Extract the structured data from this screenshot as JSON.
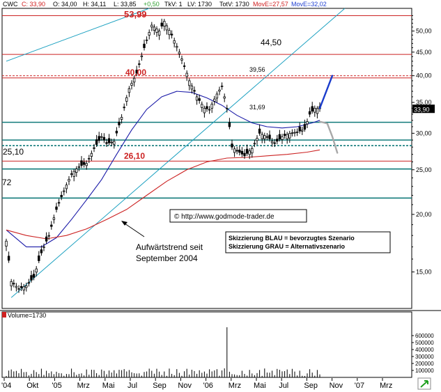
{
  "header": {
    "symbol": "CWC",
    "close_label": "C: 33,90",
    "open_label": "O: 34,00",
    "high_label": "H: 34,11",
    "low_label": "L: 33,85",
    "change_label": "+0,50",
    "tkv_label": "TkV: 1",
    "lv_label": "LV: 1730",
    "totv_label": "TotV: 1730",
    "ma1_label": "MovE=27,57",
    "ma2_label": "MovE=32,02"
  },
  "colors": {
    "price_line": "#000000",
    "ma_fast": "#1a1aa8",
    "ma_slow": "#cc2222",
    "trend_channel": "#1aa0c0",
    "support_teal": "#117a7a",
    "resistance_red": "#cc2222",
    "scenario_blue": "#1a3ccc",
    "scenario_gray": "#a8a8a8",
    "header_red": "#d02020",
    "header_blue": "#2040d0",
    "up_arrow": "#30a030"
  },
  "annotations": {
    "high_mark": "53,99",
    "resistance_44": "44,50",
    "level_40": "40,00",
    "level_39": "39,56",
    "level_31": "31,69",
    "level_26": "26,10",
    "level_25": "25,10",
    "level_72": "72",
    "current_price": "33,90",
    "trend_text_1": "Aufwärtstrend seit",
    "trend_text_2": "September 2004",
    "copyright": "© http://www.godmode-trader.de",
    "scenario_blue": "Skizzierung BLAU = bevorzugtes Szenario",
    "scenario_gray": "Skizzierung GRAU = Alternativszenario"
  },
  "chart_data": {
    "type": "candlestick",
    "y_scale": "log",
    "ylim": [
      12.5,
      56
    ],
    "price_ticks": [
      15,
      20,
      25,
      30,
      35,
      40,
      45,
      50
    ],
    "price_tick_labels": [
      "15,00",
      "20,00",
      "25,00",
      "30,00",
      "35,00",
      "40,00",
      "45,00",
      "50,00"
    ],
    "x_labels": [
      "'04",
      "Okt",
      "'05",
      "Mrz",
      "Mai",
      "Jul",
      "Sep",
      "Nov",
      "'06",
      "Mrz",
      "Mai",
      "Jul",
      "Sep",
      "Nov",
      "'07",
      "Mrz"
    ],
    "price_series": [
      [
        0,
        17.5
      ],
      [
        2,
        14.3
      ],
      [
        5,
        13.8
      ],
      [
        8,
        14.0
      ],
      [
        11,
        14.6
      ],
      [
        14,
        16.5
      ],
      [
        17,
        18.0
      ],
      [
        20,
        20.5
      ],
      [
        23,
        22.5
      ],
      [
        26,
        24.5
      ],
      [
        29,
        25.4
      ],
      [
        32,
        25.8
      ],
      [
        35,
        27.8
      ],
      [
        38,
        29.5
      ],
      [
        40,
        28.5
      ],
      [
        43,
        28.8
      ],
      [
        46,
        32.5
      ],
      [
        49,
        37.5
      ],
      [
        52,
        40.5
      ],
      [
        55,
        46.0
      ],
      [
        58,
        51.5
      ],
      [
        61,
        50.0
      ],
      [
        63,
        52.5
      ],
      [
        66,
        49.0
      ],
      [
        69,
        45.0
      ],
      [
        71,
        42.0
      ],
      [
        73,
        39.0
      ],
      [
        76,
        36.0
      ],
      [
        79,
        34.0
      ],
      [
        81,
        33.8
      ],
      [
        84,
        36.5
      ],
      [
        86,
        38.0
      ],
      [
        88,
        34.0
      ],
      [
        90,
        28.0
      ],
      [
        92,
        27.5
      ],
      [
        95,
        26.8
      ],
      [
        98,
        27.8
      ],
      [
        101,
        30.0
      ],
      [
        104,
        29.5
      ],
      [
        107,
        28.5
      ],
      [
        110,
        29.5
      ],
      [
        113,
        30.0
      ],
      [
        116,
        30.2
      ],
      [
        119,
        30.6
      ],
      [
        121,
        33.0
      ],
      [
        123,
        34.0
      ],
      [
        125,
        33.9
      ]
    ],
    "moving_averages": [
      {
        "name": "MovE=32,02",
        "color": "#1a1aa8",
        "points": [
          [
            0,
            18.5
          ],
          [
            8,
            17.0
          ],
          [
            14,
            17.0
          ],
          [
            20,
            17.8
          ],
          [
            26,
            19.5
          ],
          [
            32,
            21.5
          ],
          [
            38,
            23.8
          ],
          [
            44,
            27.0
          ],
          [
            50,
            30.5
          ],
          [
            56,
            33.8
          ],
          [
            62,
            36.0
          ],
          [
            68,
            37.0
          ],
          [
            74,
            36.8
          ],
          [
            80,
            35.8
          ],
          [
            86,
            34.5
          ],
          [
            92,
            32.8
          ],
          [
            98,
            31.6
          ],
          [
            104,
            31.0
          ],
          [
            110,
            30.8
          ],
          [
            116,
            31.0
          ],
          [
            122,
            31.6
          ],
          [
            125,
            32.0
          ]
        ]
      },
      {
        "name": "MovE=27,57",
        "color": "#cc2222",
        "points": [
          [
            0,
            18.5
          ],
          [
            8,
            18.0
          ],
          [
            16,
            17.7
          ],
          [
            24,
            18.0
          ],
          [
            32,
            18.6
          ],
          [
            40,
            19.5
          ],
          [
            48,
            20.5
          ],
          [
            56,
            22.0
          ],
          [
            64,
            23.6
          ],
          [
            72,
            25.0
          ],
          [
            80,
            26.0
          ],
          [
            88,
            26.5
          ],
          [
            96,
            26.6
          ],
          [
            104,
            26.8
          ],
          [
            112,
            27.0
          ],
          [
            120,
            27.3
          ],
          [
            125,
            27.6
          ]
        ]
      }
    ],
    "horizontal_levels": [
      {
        "value": 53.99,
        "color": "#cc2222",
        "label": "53,99"
      },
      {
        "value": 44.5,
        "color": "#cc2222",
        "label": "44,50"
      },
      {
        "value": 40.0,
        "color": "#cc2222",
        "dashed": true,
        "label": "40,00"
      },
      {
        "value": 39.56,
        "color": "#cc2222",
        "label": "39,56"
      },
      {
        "value": 31.69,
        "color": "#117a7a",
        "label": "31,69"
      },
      {
        "value": 29.0,
        "color": "#117a7a"
      },
      {
        "value": 28.2,
        "color": "#117a7a",
        "dashed": true
      },
      {
        "value": 26.1,
        "color": "#cc2222",
        "label": "26,10"
      },
      {
        "value": 25.1,
        "color": "#117a7a",
        "label": "25,10"
      },
      {
        "value": 21.7,
        "color": "#117a7a",
        "label": "72"
      }
    ],
    "trend_lines": [
      {
        "from": [
          2,
          13.2
        ],
        "to": [
          135,
          56.0
        ],
        "color": "#1aa0c0"
      },
      {
        "from": [
          0,
          43.0
        ],
        "to": [
          57,
          56.0
        ],
        "color": "#1aa0c0"
      }
    ],
    "scenarios": [
      {
        "name": "Skizzierung BLAU",
        "color": "#1a3ccc",
        "points": [
          [
            125,
            34.0
          ],
          [
            130,
            40.0
          ]
        ]
      },
      {
        "name": "Skizzierung GRAU",
        "color": "#a8a8a8",
        "points": [
          [
            125,
            31.8
          ],
          [
            128,
            31.5
          ],
          [
            130,
            29.5
          ],
          [
            132,
            27.2
          ]
        ]
      }
    ],
    "volume": {
      "label": "Volume=1730",
      "ylim": [
        0,
        800000
      ],
      "ticks": [
        100000,
        200000,
        300000,
        400000,
        500000,
        600000
      ],
      "tick_labels": [
        "100000",
        "200000",
        "300000",
        "400000",
        "500000",
        "600000"
      ],
      "spike_value": 720000,
      "spike_position": 88
    }
  }
}
